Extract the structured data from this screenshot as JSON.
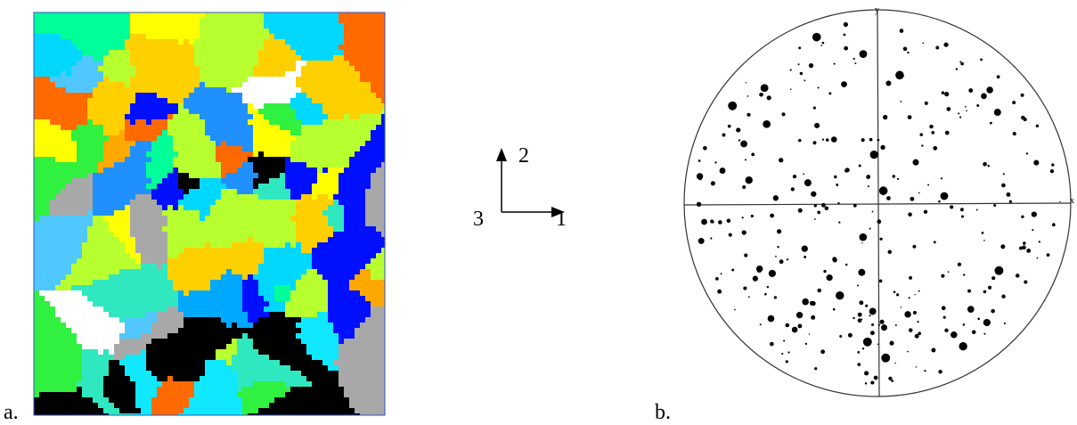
{
  "panel_a": {
    "label": "a."
  },
  "axes": {
    "up": "2",
    "out": "3",
    "right": "1"
  },
  "panel_b": {
    "label": "b.",
    "x_axis": "x",
    "y_axis": "y"
  }
}
